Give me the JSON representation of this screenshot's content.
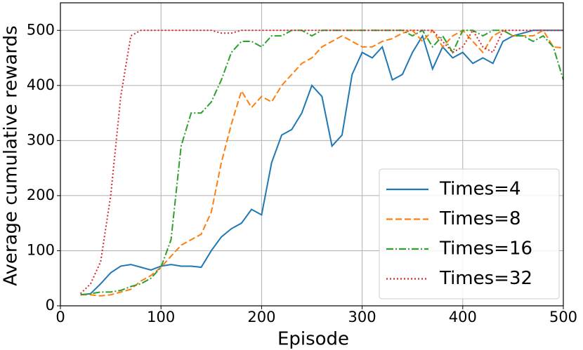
{
  "chart_data": {
    "type": "line",
    "xlabel": "Episode",
    "ylabel": "Average cumulative rewards",
    "x": [
      20,
      30,
      40,
      50,
      60,
      70,
      80,
      90,
      100,
      110,
      120,
      130,
      140,
      150,
      160,
      170,
      180,
      190,
      200,
      210,
      220,
      230,
      240,
      250,
      260,
      270,
      280,
      290,
      300,
      310,
      320,
      330,
      340,
      350,
      360,
      370,
      380,
      390,
      400,
      410,
      420,
      430,
      440,
      450,
      460,
      470,
      480,
      490,
      500
    ],
    "series": [
      {
        "name": "Times=4",
        "color": "#1f77b4",
        "dash": "solid",
        "values": [
          20,
          22,
          40,
          60,
          72,
          75,
          70,
          65,
          72,
          75,
          72,
          72,
          70,
          100,
          125,
          140,
          150,
          175,
          165,
          260,
          310,
          320,
          350,
          400,
          380,
          290,
          310,
          420,
          460,
          450,
          470,
          410,
          420,
          460,
          490,
          430,
          470,
          450,
          460,
          440,
          450,
          440,
          480,
          490,
          495,
          500,
          500,
          500,
          500
        ]
      },
      {
        "name": "Times=8",
        "color": "#ff7f0e",
        "dash": "dashed",
        "values": [
          20,
          20,
          18,
          20,
          25,
          30,
          45,
          55,
          70,
          90,
          110,
          120,
          130,
          170,
          260,
          330,
          390,
          360,
          380,
          370,
          400,
          420,
          440,
          450,
          470,
          480,
          490,
          480,
          470,
          470,
          480,
          485,
          495,
          500,
          480,
          500,
          470,
          490,
          500,
          480,
          460,
          490,
          500,
          490,
          490,
          490,
          500,
          470,
          468
        ]
      },
      {
        "name": "Times=16",
        "color": "#2ca02c",
        "dash": "dashdot",
        "values": [
          20,
          22,
          25,
          25,
          28,
          35,
          40,
          50,
          70,
          120,
          290,
          350,
          350,
          370,
          410,
          460,
          480,
          480,
          470,
          490,
          490,
          500,
          500,
          490,
          500,
          500,
          500,
          500,
          500,
          500,
          500,
          500,
          500,
          490,
          500,
          470,
          490,
          460,
          500,
          500,
          490,
          500,
          500,
          490,
          490,
          480,
          490,
          470,
          410
        ]
      },
      {
        "name": "Times=32",
        "color": "#d62728",
        "dash": "dotted",
        "values": [
          22,
          40,
          80,
          200,
          380,
          490,
          500,
          500,
          500,
          500,
          500,
          500,
          500,
          500,
          495,
          495,
          500,
          500,
          500,
          500,
          500,
          500,
          500,
          500,
          500,
          500,
          500,
          500,
          500,
          500,
          500,
          500,
          500,
          500,
          500,
          500,
          480,
          460,
          470,
          500,
          470,
          460,
          500,
          500,
          500,
          500,
          500,
          500,
          500
        ]
      }
    ],
    "xlim": [
      0,
      500
    ],
    "xticks": [
      0,
      100,
      200,
      300,
      400,
      500
    ],
    "ylim": [
      0,
      550
    ],
    "yticks": [
      0,
      100,
      200,
      300,
      400,
      500
    ],
    "grid": true,
    "legend": "lower right"
  }
}
